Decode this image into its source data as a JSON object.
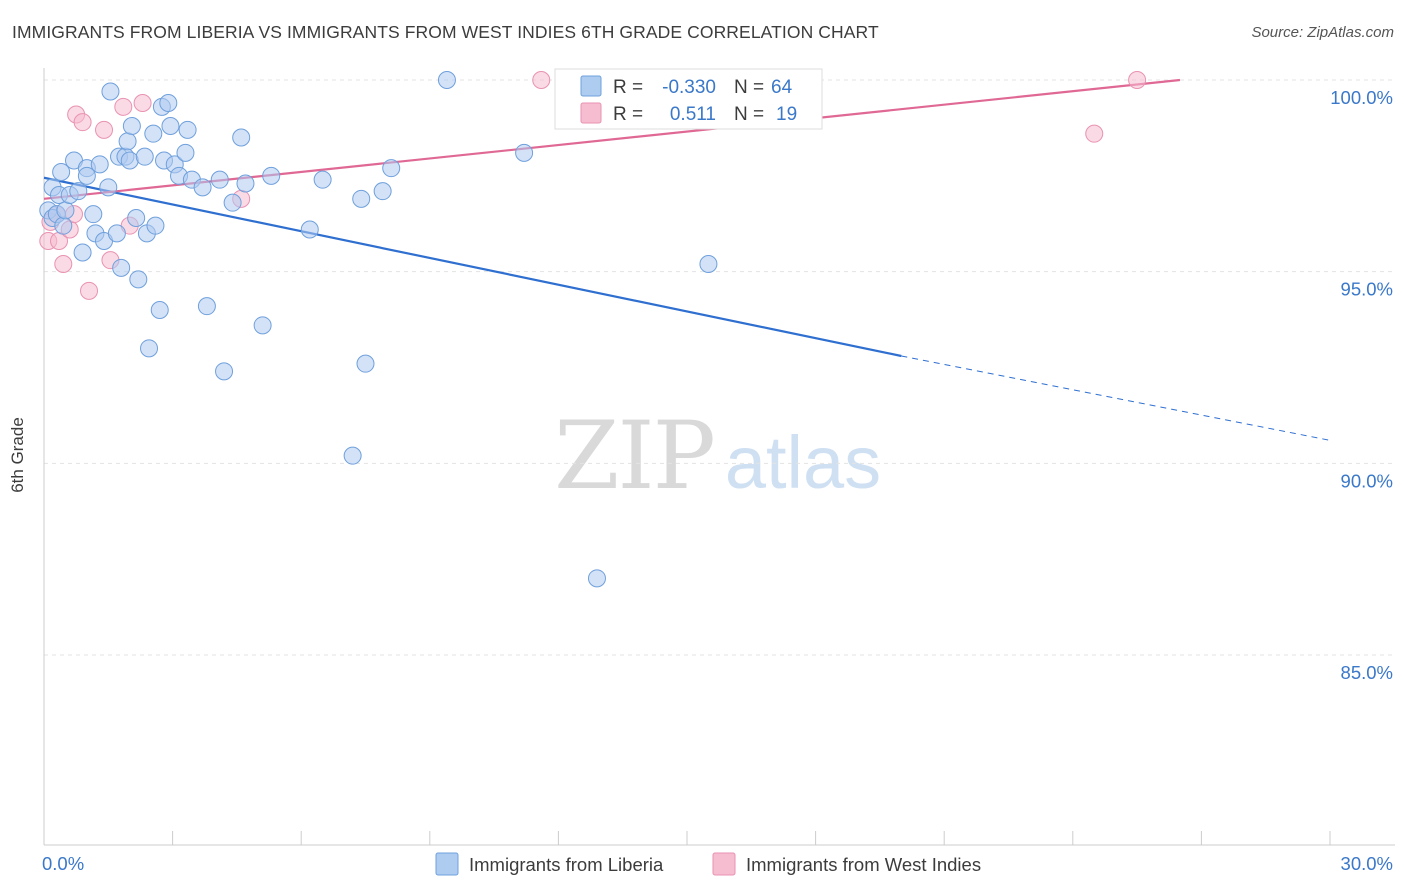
{
  "title": "IMMIGRANTS FROM LIBERIA VS IMMIGRANTS FROM WEST INDIES 6TH GRADE CORRELATION CHART",
  "source": "Source: ZipAtlas.com",
  "watermark": {
    "zip": "ZIP",
    "atlas": "atlas"
  },
  "legend_box": {
    "rows": [
      {
        "r_label": "R =",
        "r_value": "-0.330",
        "n_label": "N =",
        "n_value": "64"
      },
      {
        "r_label": "R =",
        "r_value": "0.511",
        "n_label": "N =",
        "n_value": "19"
      }
    ]
  },
  "colors": {
    "blue_fill": "#aecbf0",
    "blue_stroke": "#6fa0dc",
    "blue_line": "#2f6fd0",
    "pink_fill": "#f6bcd0",
    "pink_stroke": "#e992b2",
    "pink_line": "#e06894",
    "tick_label": "#3a78c9"
  },
  "chart_data": {
    "type": "scatter",
    "title": "IMMIGRANTS FROM LIBERIA VS IMMIGRANTS FROM WEST INDIES 6TH GRADE CORRELATION CHART",
    "xlabel": "",
    "ylabel": "6th Grade",
    "xlim": [
      0,
      30
    ],
    "ylim": [
      80.5,
      100.4
    ],
    "x_tick_labels": [
      {
        "value": 0,
        "label": "0.0%"
      },
      {
        "value": 30,
        "label": "30.0%"
      }
    ],
    "y_tick_labels": [
      {
        "value": 100,
        "label": "100.0%"
      },
      {
        "value": 95,
        "label": "95.0%"
      },
      {
        "value": 90,
        "label": "90.0%"
      },
      {
        "value": 85,
        "label": "85.0%"
      }
    ],
    "y_gridlines": [
      100,
      95,
      90,
      85
    ],
    "legend": [
      "Immigrants from Liberia",
      "Immigrants from West Indies"
    ],
    "series": [
      {
        "name": "Immigrants from Liberia",
        "color": "blue",
        "points": [
          [
            0.1,
            96.6
          ],
          [
            0.2,
            97.2
          ],
          [
            0.2,
            96.4
          ],
          [
            0.3,
            96.5
          ],
          [
            0.35,
            97.0
          ],
          [
            0.4,
            97.6
          ],
          [
            0.45,
            96.2
          ],
          [
            0.5,
            96.6
          ],
          [
            0.6,
            97.0
          ],
          [
            0.7,
            97.9
          ],
          [
            0.8,
            97.1
          ],
          [
            0.9,
            95.5
          ],
          [
            1.0,
            97.7
          ],
          [
            1.0,
            97.5
          ],
          [
            1.15,
            96.5
          ],
          [
            1.2,
            96.0
          ],
          [
            1.3,
            97.8
          ],
          [
            1.4,
            95.8
          ],
          [
            1.5,
            97.2
          ],
          [
            1.55,
            99.7
          ],
          [
            1.7,
            96.0
          ],
          [
            1.75,
            98.0
          ],
          [
            1.8,
            95.1
          ],
          [
            1.9,
            98.0
          ],
          [
            1.95,
            98.4
          ],
          [
            2.0,
            97.9
          ],
          [
            2.05,
            98.8
          ],
          [
            2.15,
            96.4
          ],
          [
            2.2,
            94.8
          ],
          [
            2.35,
            98.0
          ],
          [
            2.4,
            96.0
          ],
          [
            2.45,
            93.0
          ],
          [
            2.55,
            98.6
          ],
          [
            2.6,
            96.2
          ],
          [
            2.7,
            94.0
          ],
          [
            2.75,
            99.3
          ],
          [
            2.8,
            97.9
          ],
          [
            2.9,
            99.4
          ],
          [
            2.95,
            98.8
          ],
          [
            3.05,
            97.8
          ],
          [
            3.15,
            97.5
          ],
          [
            3.3,
            98.1
          ],
          [
            3.35,
            98.7
          ],
          [
            3.45,
            97.4
          ],
          [
            3.7,
            97.2
          ],
          [
            3.8,
            94.1
          ],
          [
            4.1,
            97.4
          ],
          [
            4.2,
            92.4
          ],
          [
            4.4,
            96.8
          ],
          [
            4.6,
            98.5
          ],
          [
            4.7,
            97.3
          ],
          [
            5.1,
            93.6
          ],
          [
            5.3,
            97.5
          ],
          [
            6.2,
            96.1
          ],
          [
            6.5,
            97.4
          ],
          [
            7.2,
            90.2
          ],
          [
            7.4,
            96.9
          ],
          [
            7.5,
            92.6
          ],
          [
            7.9,
            97.1
          ],
          [
            8.1,
            97.7
          ],
          [
            9.4,
            100.0
          ],
          [
            11.2,
            98.1
          ],
          [
            12.9,
            87.0
          ],
          [
            15.5,
            95.2
          ]
        ],
        "trend": {
          "x": [
            0,
            20
          ],
          "y": [
            97.45,
            92.8
          ],
          "dashed_x": [
            20,
            30
          ],
          "dashed_y": [
            92.8,
            90.6
          ]
        }
      },
      {
        "name": "Immigrants from West Indies",
        "color": "pink",
        "points": [
          [
            0.1,
            95.8
          ],
          [
            0.15,
            96.3
          ],
          [
            0.3,
            96.5
          ],
          [
            0.35,
            95.8
          ],
          [
            0.45,
            95.2
          ],
          [
            0.6,
            96.1
          ],
          [
            0.7,
            96.5
          ],
          [
            0.75,
            99.1
          ],
          [
            0.9,
            98.9
          ],
          [
            1.05,
            94.5
          ],
          [
            1.4,
            98.7
          ],
          [
            1.55,
            95.3
          ],
          [
            1.85,
            99.3
          ],
          [
            2.0,
            96.2
          ],
          [
            2.3,
            99.4
          ],
          [
            4.6,
            96.9
          ],
          [
            11.6,
            100.0
          ],
          [
            24.5,
            98.6
          ],
          [
            25.5,
            100.0
          ]
        ],
        "trend": {
          "x": [
            0,
            26.5
          ],
          "y": [
            96.9,
            100.0
          ]
        }
      }
    ]
  }
}
